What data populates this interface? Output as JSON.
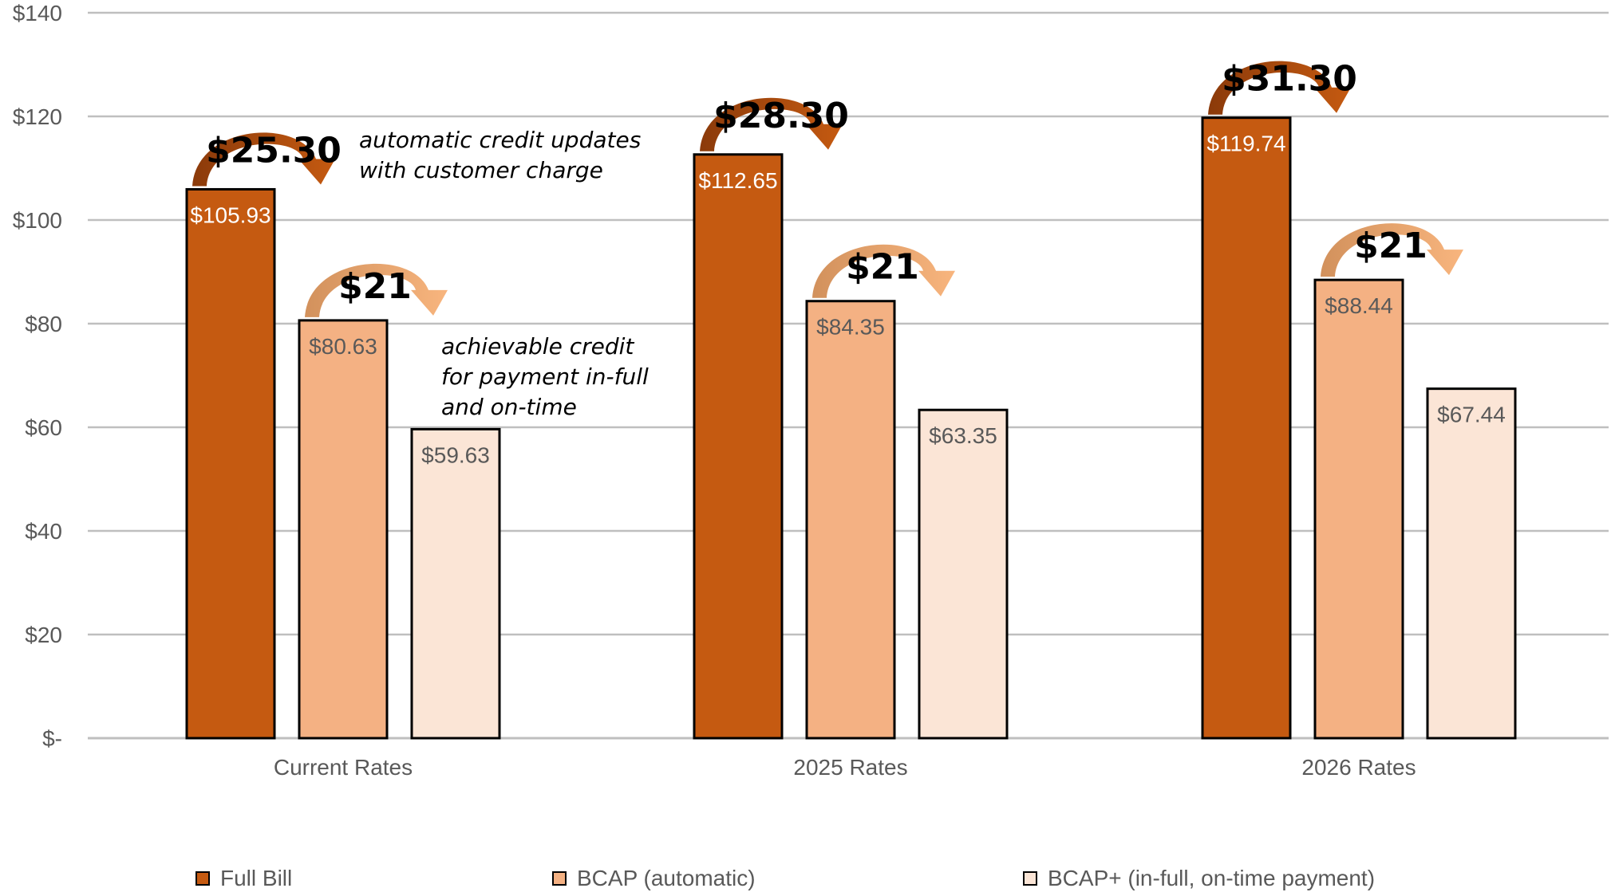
{
  "chart_data": {
    "type": "bar",
    "title": "",
    "xlabel": "",
    "ylabel": "",
    "ylim": [
      0,
      140
    ],
    "yticks": [
      0,
      20,
      40,
      60,
      80,
      100,
      120,
      140
    ],
    "ytick_labels": [
      "$-",
      "$20",
      "$40",
      "$60",
      "$80",
      "$100",
      "$120",
      "$140"
    ],
    "grid": true,
    "legend_position": "bottom",
    "categories": [
      "Current Rates",
      "2025 Rates",
      "2026 Rates"
    ],
    "series": [
      {
        "name": "Full Bill",
        "color": "#C55A11",
        "label_color": "#FFFFFF",
        "values": [
          105.93,
          112.65,
          119.74
        ],
        "data_labels": [
          "$105.93",
          "$112.65",
          "$119.74"
        ]
      },
      {
        "name": "BCAP (automatic)",
        "color": "#F4B183",
        "label_color": "#595959",
        "values": [
          80.63,
          84.35,
          88.44
        ],
        "data_labels": [
          "$80.63",
          "$84.35",
          "$88.44"
        ]
      },
      {
        "name": "BCAP+ (in-full, on-time payment)",
        "color": "#FBE5D6",
        "label_color": "#595959",
        "values": [
          59.63,
          63.35,
          67.44
        ],
        "data_labels": [
          "$59.63",
          "$63.35",
          "$67.44"
        ]
      }
    ],
    "credit_arrows": [
      {
        "category": 0,
        "from_series": 0,
        "label": "$25.30",
        "color": "#A0480D"
      },
      {
        "category": 0,
        "from_series": 1,
        "label": "$21",
        "color": "#F4A460"
      },
      {
        "category": 1,
        "from_series": 0,
        "label": "$28.30",
        "color": "#A0480D"
      },
      {
        "category": 1,
        "from_series": 1,
        "label": "$21",
        "color": "#F4A460"
      },
      {
        "category": 2,
        "from_series": 0,
        "label": "$31.30",
        "color": "#A0480D"
      },
      {
        "category": 2,
        "from_series": 1,
        "label": "$21",
        "color": "#F4A460"
      }
    ],
    "annotations": [
      {
        "lines": [
          "automatic credit updates",
          "with customer charge"
        ]
      },
      {
        "lines": [
          "achievable credit",
          "for payment in-full",
          "and on-time"
        ]
      }
    ]
  }
}
